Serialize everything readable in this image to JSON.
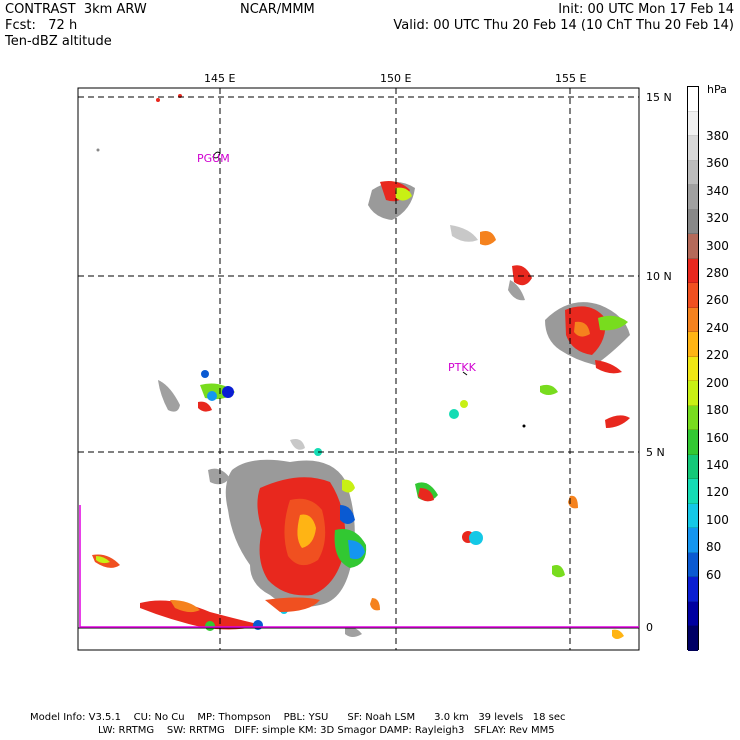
{
  "header": {
    "left_line1": "CONTRAST  3km ARW",
    "left_line2": "Fcst:   72 h",
    "left_line3": "Ten-dBZ altitude",
    "center": "NCAR/MMM",
    "right_line1": "Init: 00 UTC Mon 17 Feb 14",
    "right_line2": "Valid: 00 UTC Thu 20 Feb 14 (10 ChT Thu 20 Feb 14)"
  },
  "map": {
    "lon_labels": [
      "145 E",
      "150 E",
      "155 E"
    ],
    "lat_labels": [
      "15 N",
      "10 N",
      "5 N",
      "0"
    ],
    "stations": [
      "PGUM",
      "PTKK"
    ]
  },
  "colorbar": {
    "unit": "hPa",
    "labels": [
      "380",
      "360",
      "340",
      "320",
      "300",
      "280",
      "260",
      "240",
      "220",
      "200",
      "180",
      "160",
      "140",
      "120",
      "100",
      "80",
      "60"
    ],
    "colors": [
      "#ffffff",
      "#f0f0f0",
      "#d8d8d8",
      "#bcbcbc",
      "#a0a0a0",
      "#888888",
      "#b46a5a",
      "#e8281e",
      "#f05020",
      "#f5821e",
      "#ffb414",
      "#f0e614",
      "#c8f014",
      "#78dc1e",
      "#32c832",
      "#14c878",
      "#14dcb4",
      "#14c8e6",
      "#1496f0",
      "#0a5ad2",
      "#0a1ed2",
      "#0000a0",
      "#000064"
    ]
  },
  "footer": {
    "line1": "Model Info: V3.5.1    CU: No Cu    MP: Thompson    PBL: YSU      SF: Noah LSM      3.0 km   39 levels   18 sec",
    "line2": "LW: RRTMG    SW: RRTMG   DIFF: simple KM: 3D Smagor DAMP: Rayleigh3   SFLAY: Rev MM5"
  }
}
